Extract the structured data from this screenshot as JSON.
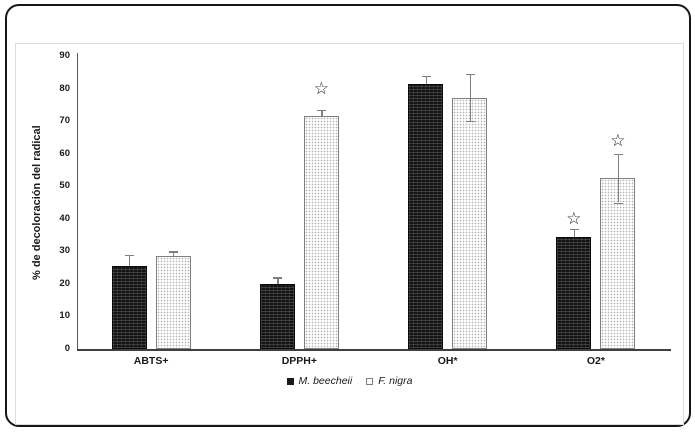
{
  "chart_data": {
    "type": "bar",
    "title": "",
    "xlabel": "",
    "ylabel": "% de decoloración del radical",
    "ylim": [
      0,
      90
    ],
    "ytick_step": 10,
    "grid": false,
    "legend_position": "bottom-center",
    "categories": [
      "ABTS+",
      "DPPH+",
      "OH*",
      "O2*"
    ],
    "series": [
      {
        "name": "M. beecheii",
        "marker": "filled-square",
        "fill": "black-checkered-pattern",
        "values": [
          25.5,
          20,
          81.5,
          34.5
        ],
        "err_plus": [
          3.5,
          2,
          2.5,
          2.5
        ],
        "err_minus": [
          0,
          0,
          0,
          0
        ]
      },
      {
        "name": "F. nigra",
        "marker": "open-square",
        "fill": "white-dotted-pattern",
        "values": [
          28.5,
          71.5,
          77,
          52.5
        ],
        "err_plus": [
          1.5,
          2,
          7.5,
          7.5
        ],
        "err_minus": [
          0,
          0,
          7,
          7.5
        ]
      }
    ],
    "annotations": [
      {
        "symbol": "☆",
        "category": "DPPH+",
        "series": "F. nigra",
        "y": 80
      },
      {
        "symbol": "☆",
        "category": "O2*",
        "series": "M. beecheii",
        "y": 40
      },
      {
        "symbol": "☆",
        "category": "O2*",
        "series": "F. nigra",
        "y": 64
      }
    ]
  },
  "colors": {
    "frame_border": "#161616",
    "inner_border": "#dcdcdc",
    "axis": "#595959",
    "error_bar": "#7f7f7f",
    "text": "#1a1a1a",
    "bar_dark": "#141414",
    "bar_light": "#ffffff"
  }
}
